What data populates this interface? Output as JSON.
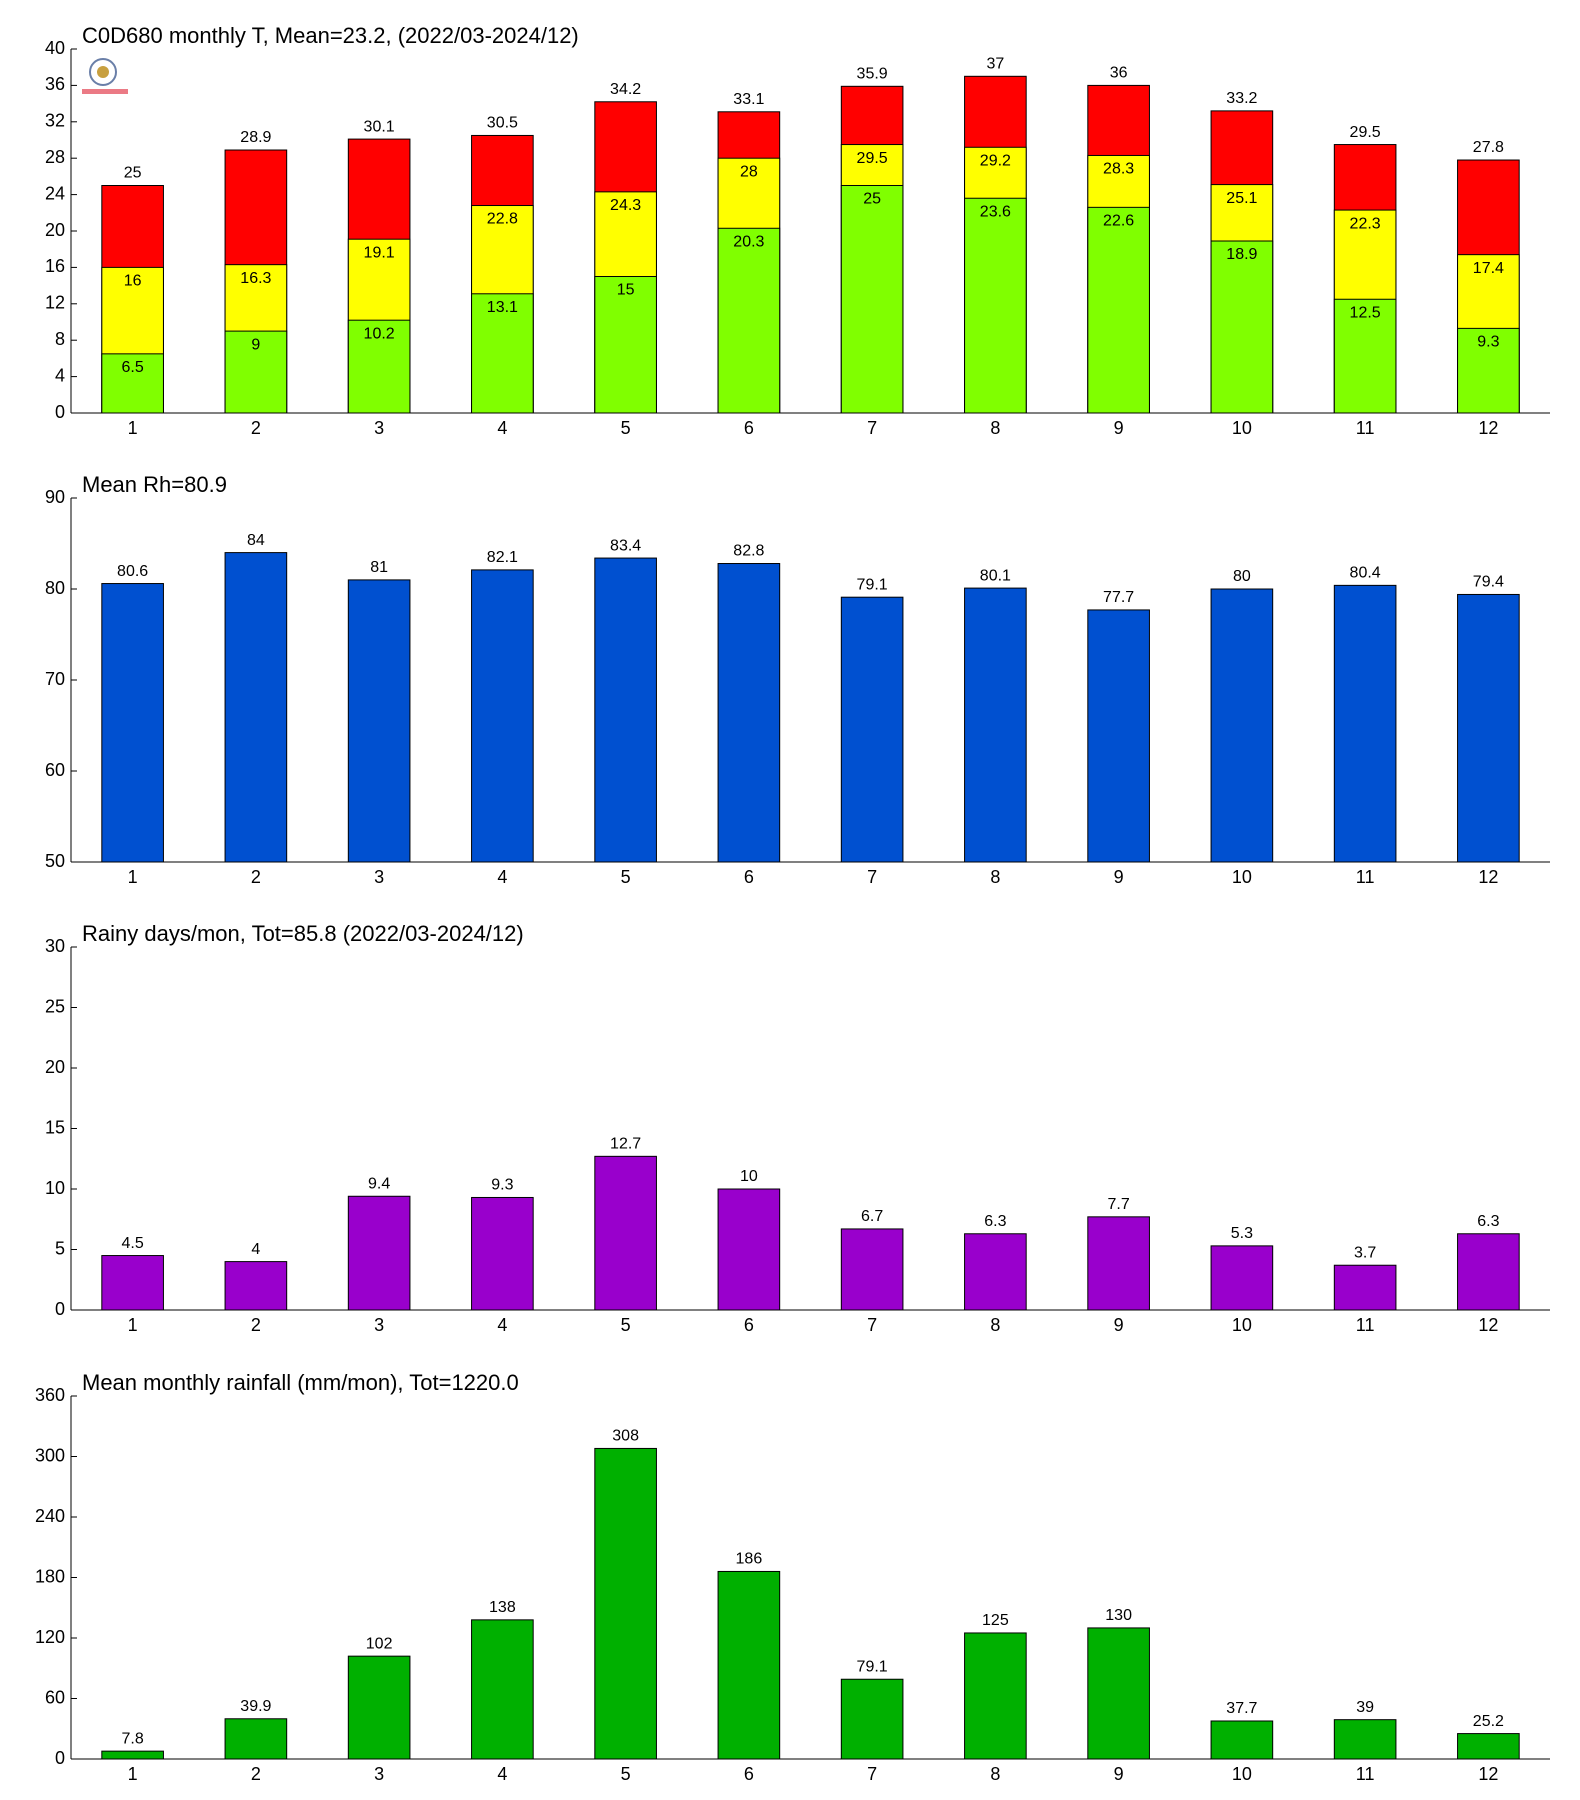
{
  "chart_data": [
    {
      "type": "bar",
      "title": "C0D680 monthly T, Mean=23.2, (2022/03-2024/12)",
      "categories": [
        "1",
        "2",
        "3",
        "4",
        "5",
        "6",
        "7",
        "8",
        "9",
        "10",
        "11",
        "12"
      ],
      "series": [
        {
          "color": "#ff0000",
          "values": [
            25,
            28.9,
            30.1,
            30.5,
            34.2,
            33.1,
            35.9,
            37,
            36,
            33.2,
            29.5,
            27.8
          ]
        },
        {
          "color": "#ffff00",
          "values": [
            16,
            16.3,
            19.1,
            22.8,
            24.3,
            28,
            29.5,
            29.2,
            28.3,
            25.1,
            22.3,
            17.4
          ]
        },
        {
          "color": "#80ff00",
          "values": [
            6.5,
            9,
            10.2,
            13.1,
            15,
            20.3,
            25,
            23.6,
            22.6,
            18.9,
            12.5,
            9.3
          ]
        }
      ],
      "ylim": [
        0,
        40
      ],
      "yticks": [
        0,
        4,
        8,
        12,
        16,
        20,
        24,
        28,
        32,
        36,
        40
      ]
    },
    {
      "type": "bar",
      "title": "Mean Rh=80.9",
      "categories": [
        "1",
        "2",
        "3",
        "4",
        "5",
        "6",
        "7",
        "8",
        "9",
        "10",
        "11",
        "12"
      ],
      "values": [
        80.6,
        84,
        81,
        82.1,
        83.4,
        82.8,
        79.1,
        80.1,
        77.7,
        80,
        80.4,
        79.4
      ],
      "color": "#0050d0",
      "ylim": [
        50,
        90
      ],
      "yticks": [
        50,
        60,
        70,
        80,
        90
      ]
    },
    {
      "type": "bar",
      "title": "Rainy days/mon, Tot=85.8 (2022/03-2024/12)",
      "categories": [
        "1",
        "2",
        "3",
        "4",
        "5",
        "6",
        "7",
        "8",
        "9",
        "10",
        "11",
        "12"
      ],
      "values": [
        4.5,
        4,
        9.4,
        9.3,
        12.7,
        10,
        6.7,
        6.3,
        7.7,
        5.3,
        3.7,
        6.3
      ],
      "color": "#9900cc",
      "ylim": [
        0,
        30
      ],
      "yticks": [
        0,
        5,
        10,
        15,
        20,
        25,
        30
      ]
    },
    {
      "type": "bar",
      "title": "Mean monthly rainfall (mm/mon), Tot=1220.0",
      "categories": [
        "1",
        "2",
        "3",
        "4",
        "5",
        "6",
        "7",
        "8",
        "9",
        "10",
        "11",
        "12"
      ],
      "values": [
        7.8,
        39.9,
        102,
        138,
        308,
        186,
        79.1,
        125,
        130,
        37.7,
        39,
        25.2
      ],
      "color": "#00b000",
      "ylim": [
        0,
        360
      ],
      "yticks": [
        0,
        60,
        120,
        180,
        240,
        300,
        360
      ]
    }
  ]
}
